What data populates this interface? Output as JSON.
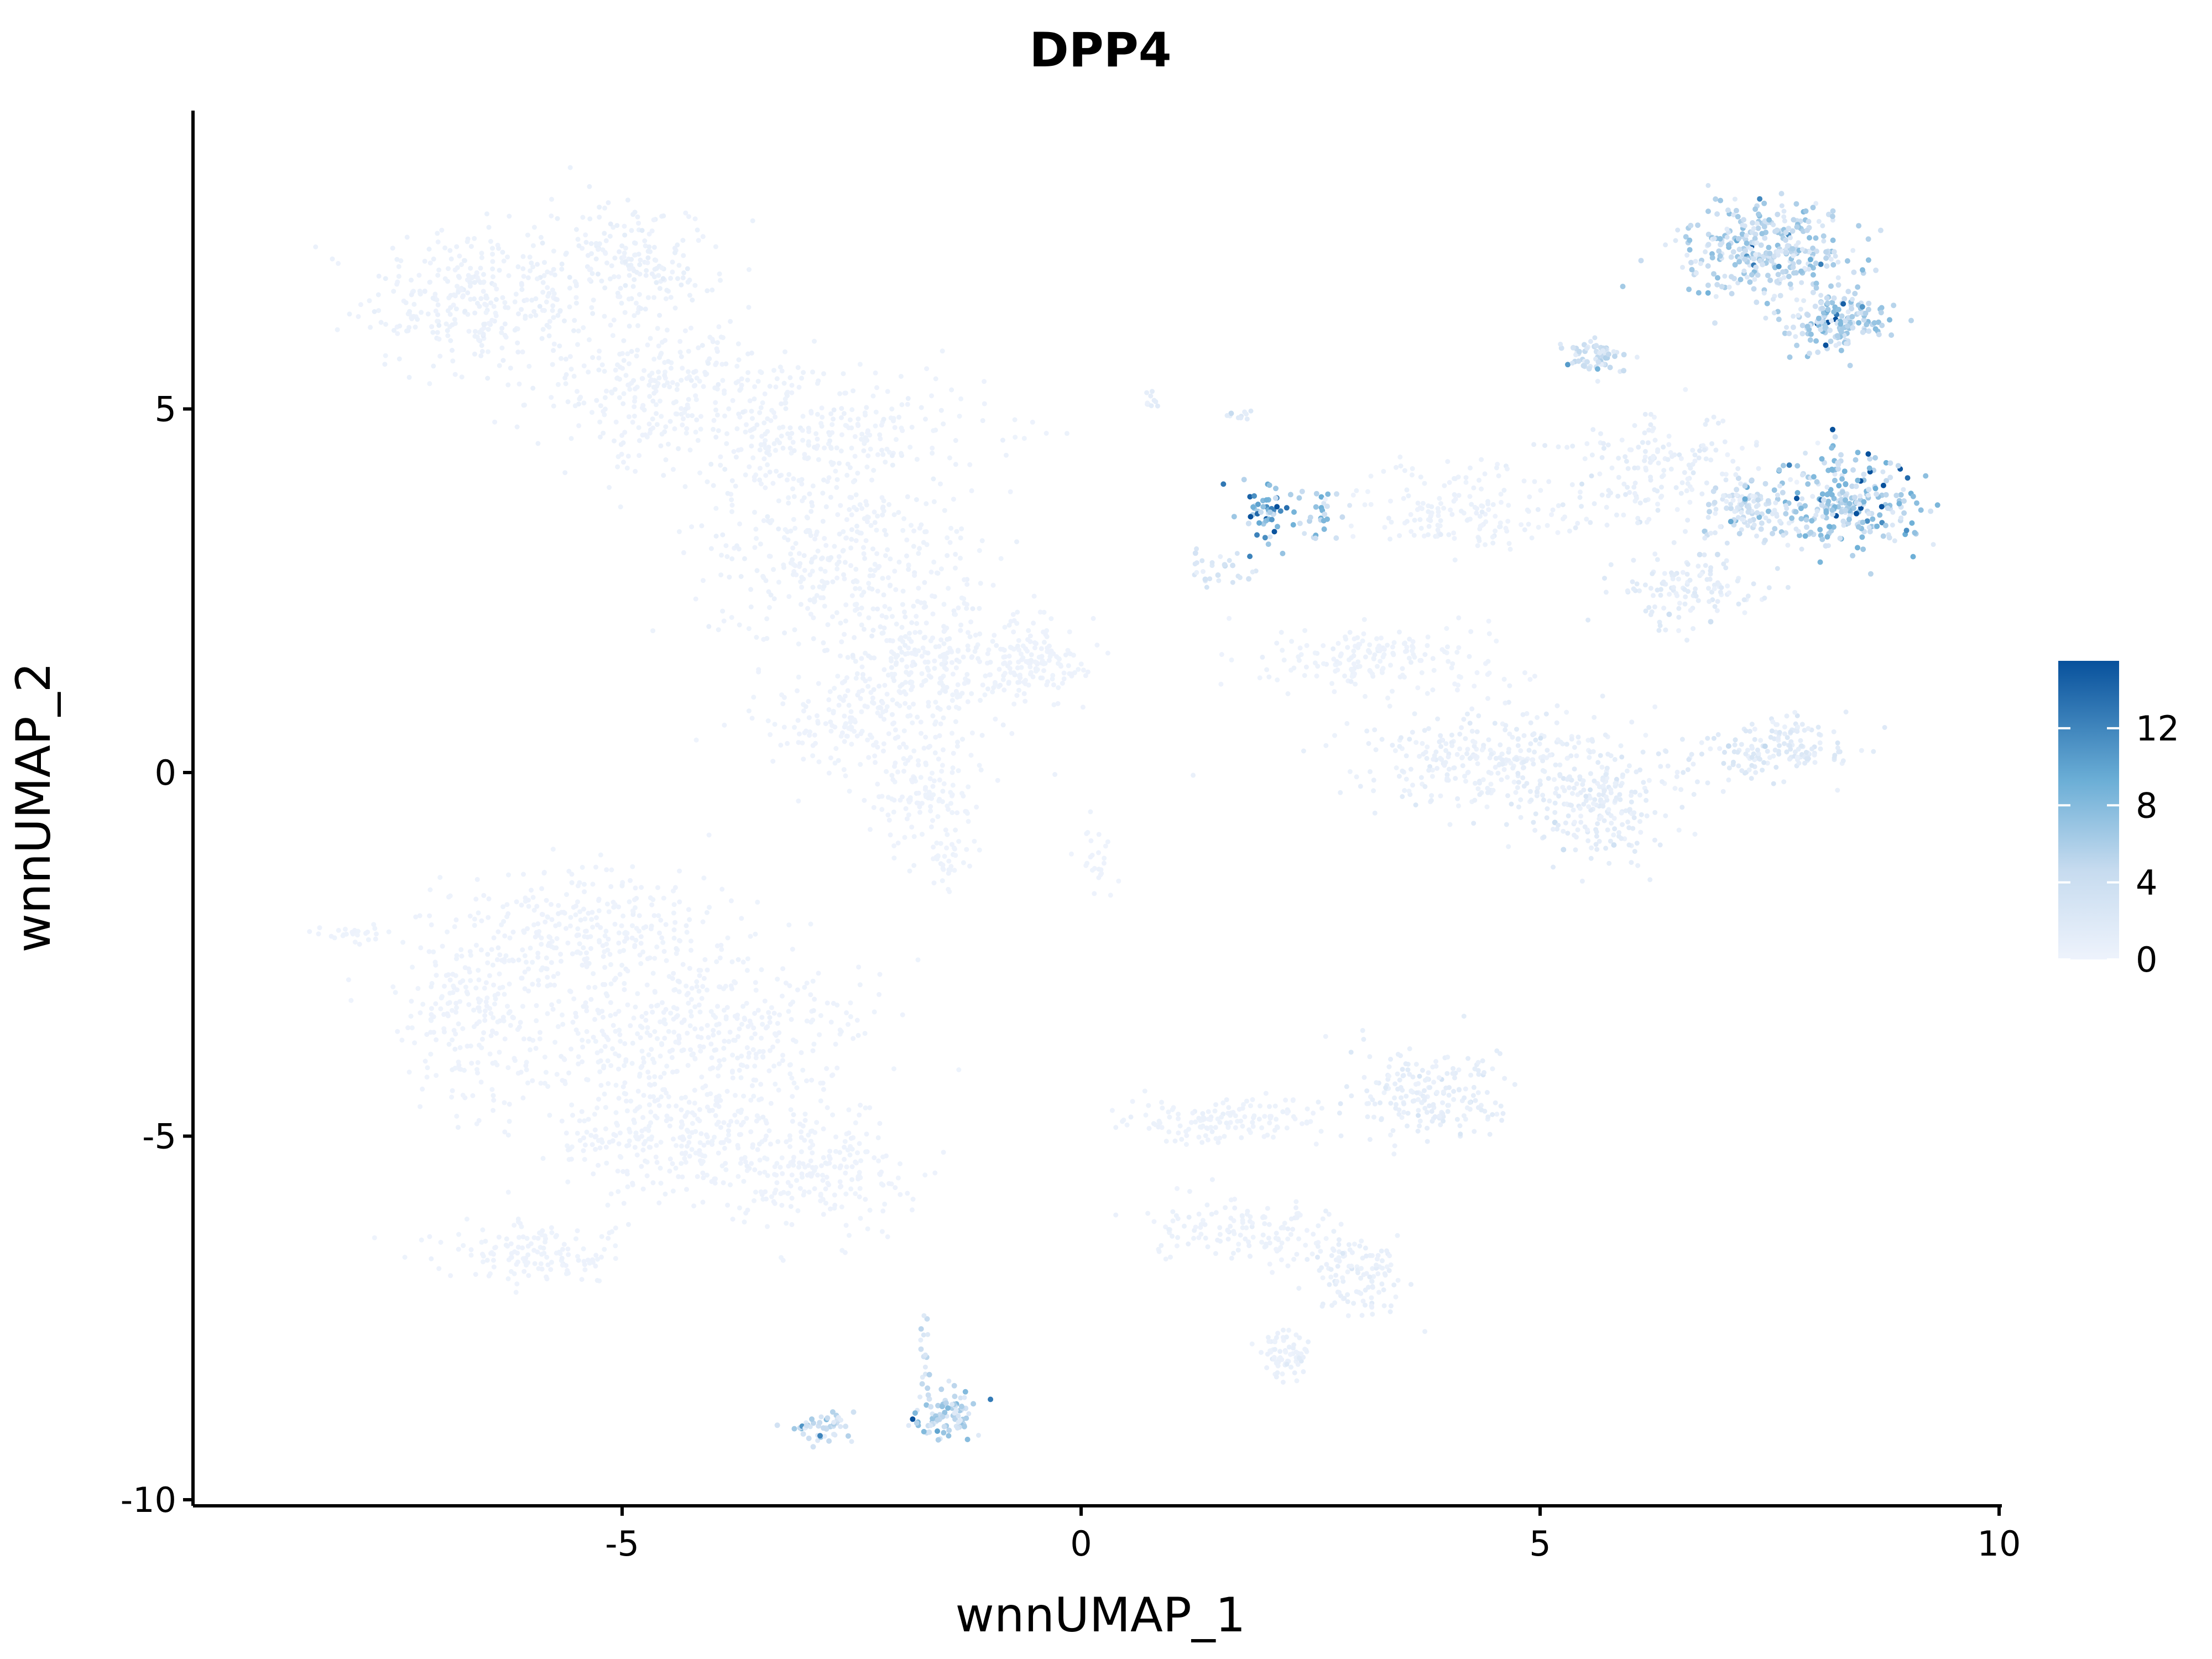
{
  "chart_data": {
    "type": "scatter",
    "title": "DPP4",
    "xlabel": "wnnUMAP_1",
    "ylabel": "wnnUMAP_2",
    "xlim": [
      -9.8,
      10
    ],
    "ylim": [
      -10,
      9
    ],
    "x_ticks": [
      -5,
      0,
      5,
      10
    ],
    "x_tick_labels": [
      "-5",
      "0",
      "5",
      "10"
    ],
    "y_ticks": [
      -10,
      -5,
      0,
      5
    ],
    "y_tick_labels": [
      "-10",
      "-5",
      "0",
      "5"
    ],
    "legend": {
      "placement": "right",
      "min": 0,
      "max": 15.5,
      "ticks": [
        0,
        4,
        8,
        12
      ],
      "tick_labels": [
        "0",
        "4",
        "8",
        "12"
      ],
      "color_low": "#eef3fc",
      "color_high": "#08519c"
    },
    "clusters": [
      {
        "x": -6.6,
        "y": 6.5,
        "rx": 1.1,
        "ry": 0.9,
        "n": 320,
        "expr": 0.3
      },
      {
        "x": -4.9,
        "y": 7.0,
        "rx": 0.8,
        "ry": 0.8,
        "n": 200,
        "expr": 0.4
      },
      {
        "x": -4.5,
        "y": 5.3,
        "rx": 1.4,
        "ry": 0.9,
        "n": 260,
        "expr": 0.2
      },
      {
        "x": -3.0,
        "y": 4.7,
        "rx": 1.8,
        "ry": 0.8,
        "n": 300,
        "expr": 0.2
      },
      {
        "x": -2.6,
        "y": 3.0,
        "rx": 1.4,
        "ry": 1.1,
        "n": 360,
        "expr": 0.2
      },
      {
        "x": -1.6,
        "y": 1.5,
        "rx": 1.0,
        "ry": 0.9,
        "n": 260,
        "expr": 0.2
      },
      {
        "x": -0.5,
        "y": 1.5,
        "rx": 0.6,
        "ry": 0.5,
        "n": 140,
        "expr": 0.1
      },
      {
        "x": -2.5,
        "y": 0.6,
        "rx": 0.9,
        "ry": 0.6,
        "n": 160,
        "expr": 0.1
      },
      {
        "x": -1.7,
        "y": -0.3,
        "rx": 0.6,
        "ry": 0.6,
        "n": 120,
        "expr": 0.1
      },
      {
        "x": -1.5,
        "y": -1.2,
        "rx": 0.2,
        "ry": 0.3,
        "n": 30,
        "expr": 0.1
      },
      {
        "x": 0.2,
        "y": -1.2,
        "rx": 0.2,
        "ry": 0.4,
        "n": 25,
        "expr": 0.1
      },
      {
        "x": -5.2,
        "y": -2.2,
        "rx": 1.4,
        "ry": 0.8,
        "n": 320,
        "expr": 0.1
      },
      {
        "x": -6.6,
        "y": -3.3,
        "rx": 0.8,
        "ry": 1.2,
        "n": 220,
        "expr": 0.1
      },
      {
        "x": -4.2,
        "y": -3.6,
        "rx": 1.7,
        "ry": 1.0,
        "n": 420,
        "expr": 0.1
      },
      {
        "x": -4.5,
        "y": -5.0,
        "rx": 1.3,
        "ry": 0.7,
        "n": 280,
        "expr": 0.1
      },
      {
        "x": -2.9,
        "y": -5.5,
        "rx": 0.9,
        "ry": 0.7,
        "n": 220,
        "expr": 0.1
      },
      {
        "x": -6.0,
        "y": -6.6,
        "rx": 0.9,
        "ry": 0.4,
        "n": 140,
        "expr": 0.1
      },
      {
        "x": -7.9,
        "y": -2.2,
        "rx": 0.4,
        "ry": 0.1,
        "n": 25,
        "expr": 0.1
      },
      {
        "x": 1.5,
        "y": -4.8,
        "rx": 1.0,
        "ry": 0.3,
        "n": 140,
        "expr": 0.2
      },
      {
        "x": 3.8,
        "y": -4.4,
        "rx": 0.8,
        "ry": 0.6,
        "n": 200,
        "expr": 0.8
      },
      {
        "x": 1.8,
        "y": -6.3,
        "rx": 0.9,
        "ry": 0.4,
        "n": 140,
        "expr": 0.3
      },
      {
        "x": 3.0,
        "y": -6.9,
        "rx": 0.5,
        "ry": 0.5,
        "n": 120,
        "expr": 0.6
      },
      {
        "x": 2.2,
        "y": -8.0,
        "rx": 0.3,
        "ry": 0.3,
        "n": 70,
        "expr": 0.5
      },
      {
        "x": -2.8,
        "y": -9.0,
        "rx": 0.3,
        "ry": 0.2,
        "n": 50,
        "expr": 4.0
      },
      {
        "x": -1.5,
        "y": -8.8,
        "rx": 0.3,
        "ry": 0.3,
        "n": 90,
        "expr": 5.0
      },
      {
        "x": -1.7,
        "y": -7.9,
        "rx": 0.05,
        "ry": 0.5,
        "n": 15,
        "expr": 3.5
      },
      {
        "x": 2.0,
        "y": 3.6,
        "rx": 0.3,
        "ry": 0.35,
        "n": 50,
        "expr": 9.0
      },
      {
        "x": 2.6,
        "y": 3.5,
        "rx": 0.3,
        "ry": 0.3,
        "n": 30,
        "expr": 6.0
      },
      {
        "x": 1.5,
        "y": 2.8,
        "rx": 0.4,
        "ry": 0.2,
        "n": 30,
        "expr": 2.0
      },
      {
        "x": 0.8,
        "y": 5.1,
        "rx": 0.1,
        "ry": 0.1,
        "n": 10,
        "expr": 1.0
      },
      {
        "x": 1.7,
        "y": 4.9,
        "rx": 0.2,
        "ry": 0.05,
        "n": 10,
        "expr": 1.5
      },
      {
        "x": 7.5,
        "y": 7.2,
        "rx": 0.9,
        "ry": 0.6,
        "n": 340,
        "expr": 4.5
      },
      {
        "x": 8.2,
        "y": 6.2,
        "rx": 0.5,
        "ry": 0.4,
        "n": 160,
        "expr": 5.0
      },
      {
        "x": 8.3,
        "y": 3.7,
        "rx": 0.7,
        "ry": 0.6,
        "n": 260,
        "expr": 5.5
      },
      {
        "x": 7.3,
        "y": 3.6,
        "rx": 0.5,
        "ry": 0.4,
        "n": 110,
        "expr": 3.0
      },
      {
        "x": 5.6,
        "y": 5.7,
        "rx": 0.3,
        "ry": 0.2,
        "n": 60,
        "expr": 3.0
      },
      {
        "x": 6.3,
        "y": 4.2,
        "rx": 1.0,
        "ry": 0.7,
        "n": 180,
        "expr": 0.8
      },
      {
        "x": 4.2,
        "y": 3.6,
        "rx": 1.0,
        "ry": 0.6,
        "n": 160,
        "expr": 0.3
      },
      {
        "x": 6.6,
        "y": 2.5,
        "rx": 0.7,
        "ry": 0.4,
        "n": 120,
        "expr": 1.2
      },
      {
        "x": 3.2,
        "y": 1.6,
        "rx": 1.2,
        "ry": 0.4,
        "n": 180,
        "expr": 0.2
      },
      {
        "x": 4.5,
        "y": 0.2,
        "rx": 1.5,
        "ry": 0.6,
        "n": 300,
        "expr": 0.6
      },
      {
        "x": 5.6,
        "y": -0.4,
        "rx": 0.8,
        "ry": 0.7,
        "n": 220,
        "expr": 1.0
      },
      {
        "x": 7.6,
        "y": 0.3,
        "rx": 0.7,
        "ry": 0.4,
        "n": 160,
        "expr": 1.5
      }
    ]
  }
}
